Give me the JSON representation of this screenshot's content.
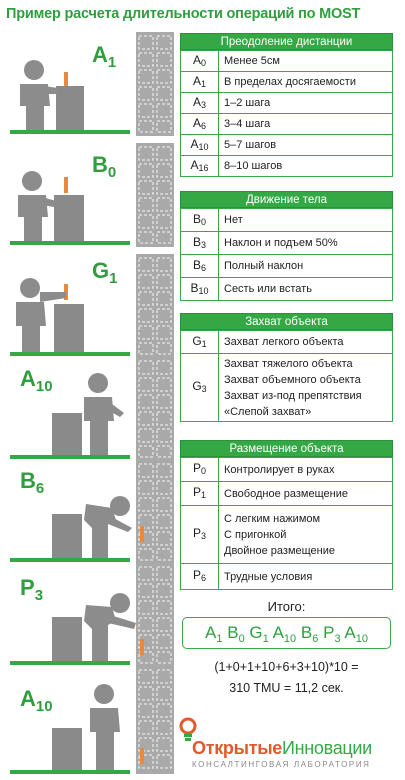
{
  "title": "Пример расчета длительности операций по MOST",
  "figure_codes": [
    {
      "letter": "A",
      "sub": "1"
    },
    {
      "letter": "B",
      "sub": "0"
    },
    {
      "letter": "G",
      "sub": "1"
    },
    {
      "letter": "A",
      "sub": "10"
    },
    {
      "letter": "B",
      "sub": "6"
    },
    {
      "letter": "P",
      "sub": "3"
    },
    {
      "letter": "A",
      "sub": "10"
    }
  ],
  "sections": [
    {
      "header": "Преодоление дистанции",
      "rows": [
        {
          "letter": "A",
          "sub": "0",
          "desc": "Менее 5см"
        },
        {
          "letter": "A",
          "sub": "1",
          "desc": "В пределах досягаемости"
        },
        {
          "letter": "A",
          "sub": "3",
          "desc": "1–2 шага"
        },
        {
          "letter": "A",
          "sub": "6",
          "desc": "3–4 шага"
        },
        {
          "letter": "A",
          "sub": "10",
          "desc": "5–7 шагов"
        },
        {
          "letter": "A",
          "sub": "16",
          "desc": "8–10 шагов"
        }
      ]
    },
    {
      "header": "Движение тела",
      "rows": [
        {
          "letter": "B",
          "sub": "0",
          "desc": "Нет"
        },
        {
          "letter": "B",
          "sub": "3",
          "desc": "Наклон и подъем 50%"
        },
        {
          "letter": "B",
          "sub": "6",
          "desc": "Полный наклон"
        },
        {
          "letter": "B",
          "sub": "10",
          "desc": "Сесть или встать"
        }
      ]
    },
    {
      "header": "Захват объекта",
      "rows": [
        {
          "letter": "G",
          "sub": "1",
          "desc": "Захват легкого объекта"
        },
        {
          "letter": "G",
          "sub": "3",
          "desc": "Захват тяжелого объекта\nЗахват объемного объекта\nЗахват из-под препятствия\n«Слепой захват»"
        }
      ]
    },
    {
      "header": "Размещение объекта",
      "rows": [
        {
          "letter": "P",
          "sub": "0",
          "desc": "Контролирует в руках"
        },
        {
          "letter": "P",
          "sub": "1",
          "desc": "Свободное размещение"
        },
        {
          "letter": "P",
          "sub": "3",
          "desc": "С легким нажимом\nС пригонкой\nДвойное размещение"
        },
        {
          "letter": "P",
          "sub": "6",
          "desc": "Трудные условия"
        }
      ]
    }
  ],
  "total": {
    "label": "Итого:",
    "sequence": [
      {
        "letter": "A",
        "sub": "1"
      },
      {
        "letter": "B",
        "sub": "0"
      },
      {
        "letter": "G",
        "sub": "1"
      },
      {
        "letter": "A",
        "sub": "10"
      },
      {
        "letter": "B",
        "sub": "6"
      },
      {
        "letter": "P",
        "sub": "3"
      },
      {
        "letter": "A",
        "sub": "10"
      }
    ],
    "calc_line1": "(1+0+1+10+6+3+10)*10 =",
    "calc_line2": "310 TMU = 11,2 сек."
  },
  "logo": {
    "name_part1": "Открытые",
    "name_part2": "Инновации",
    "subtitle": "КОНСАЛТИНГОВАЯ ЛАБОРАТОРИЯ"
  },
  "colors": {
    "accent_green": "#35a846",
    "logo_orange": "#e2592b",
    "figure_gray": "#8c8c8c",
    "pin_orange": "#e8893c"
  }
}
